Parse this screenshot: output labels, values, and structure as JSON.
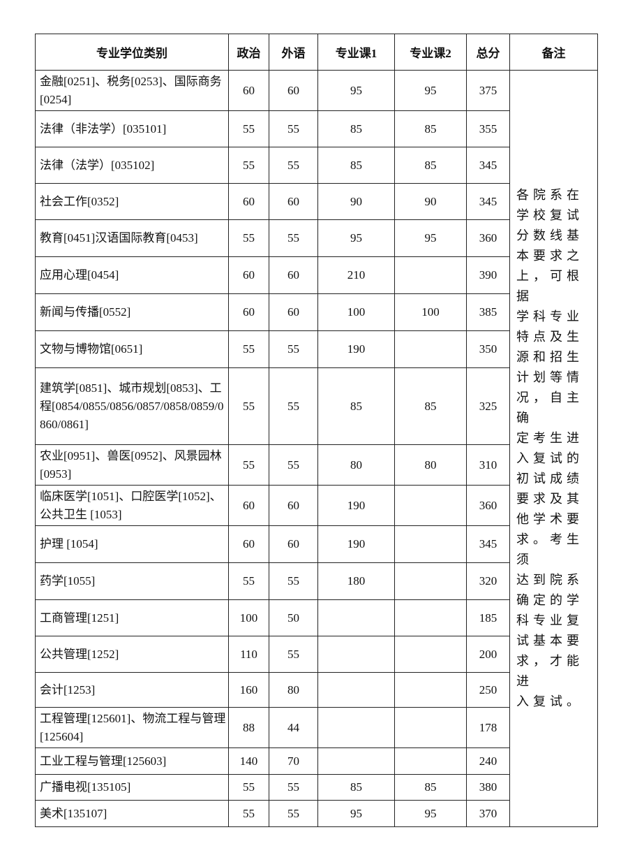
{
  "headers": [
    "专业学位类别",
    "政治",
    "外语",
    "专业课1",
    "专业课2",
    "总分",
    "备注"
  ],
  "rows": [
    {
      "name": "金融[0251]、税务[0253]、国际商务[0254]",
      "zz": "60",
      "wy": "60",
      "k1": "95",
      "k2": "95",
      "total": "375"
    },
    {
      "name": "法律（非法学）[035101]",
      "zz": "55",
      "wy": "55",
      "k1": "85",
      "k2": "85",
      "total": "355"
    },
    {
      "name": "法律（法学）[035102]",
      "zz": "55",
      "wy": "55",
      "k1": "85",
      "k2": "85",
      "total": "345"
    },
    {
      "name": "社会工作[0352]",
      "zz": "60",
      "wy": "60",
      "k1": "90",
      "k2": "90",
      "total": "345"
    },
    {
      "name": "教育[0451]汉语国际教育[0453]",
      "zz": "55",
      "wy": "55",
      "k1": "95",
      "k2": "95",
      "total": "360"
    },
    {
      "name": "应用心理[0454]",
      "zz": "60",
      "wy": "60",
      "k1": "210",
      "k2": "",
      "total": "390"
    },
    {
      "name": "新闻与传播[0552]",
      "zz": "60",
      "wy": "60",
      "k1": "100",
      "k2": "100",
      "total": "385"
    },
    {
      "name": "文物与博物馆[0651]",
      "zz": "55",
      "wy": "55",
      "k1": "190",
      "k2": "",
      "total": "350"
    },
    {
      "name": "建筑学[0851]、城市规划[0853]、工程[0854/0855/0856/0857/0858/0859/0860/0861]",
      "zz": "55",
      "wy": "55",
      "k1": "85",
      "k2": "85",
      "total": "325"
    },
    {
      "name": "农业[0951]、兽医[0952]、风景园林[0953]",
      "zz": "55",
      "wy": "55",
      "k1": "80",
      "k2": "80",
      "total": "310"
    },
    {
      "name": "临床医学[1051]、口腔医学[1052]、公共卫生 [1053]",
      "zz": "60",
      "wy": "60",
      "k1": "190",
      "k2": "",
      "total": "360"
    },
    {
      "name": "护理 [1054]",
      "zz": "60",
      "wy": "60",
      "k1": "190",
      "k2": "",
      "total": "345"
    },
    {
      "name": "药学[1055]",
      "zz": "55",
      "wy": "55",
      "k1": "180",
      "k2": "",
      "total": "320"
    },
    {
      "name": "工商管理[1251]",
      "zz": "100",
      "wy": "50",
      "k1": "",
      "k2": "",
      "total": "185"
    },
    {
      "name": "公共管理[1252]",
      "zz": "110",
      "wy": "55",
      "k1": "",
      "k2": "",
      "total": "200"
    },
    {
      "name": "会计[1253]",
      "zz": "160",
      "wy": "80",
      "k1": "",
      "k2": "",
      "total": "250"
    },
    {
      "name": "工程管理[125601]、物流工程与管理[125604]",
      "zz": "88",
      "wy": "44",
      "k1": "",
      "k2": "",
      "total": "178"
    },
    {
      "name": "工业工程与管理[125603]",
      "zz": "140",
      "wy": "70",
      "k1": "",
      "k2": "",
      "total": "240"
    },
    {
      "name": "广播电视[135105]",
      "zz": "55",
      "wy": "55",
      "k1": "85",
      "k2": "85",
      "total": "380"
    },
    {
      "name": "美术[135107]",
      "zz": "55",
      "wy": "55",
      "k1": "95",
      "k2": "95",
      "total": "370"
    }
  ],
  "note": "各院系在\n学校复试\n分数线基\n本要求之\n上，可根据\n学科专业\n特点及生\n源和招生\n计划等情\n况，自主确\n定考生进\n入复试的\n初试成绩\n要求及其\n他学术要\n求。考生须\n达到院系\n确定的学\n科专业复\n试基本要\n求，才能进\n入复试。"
}
